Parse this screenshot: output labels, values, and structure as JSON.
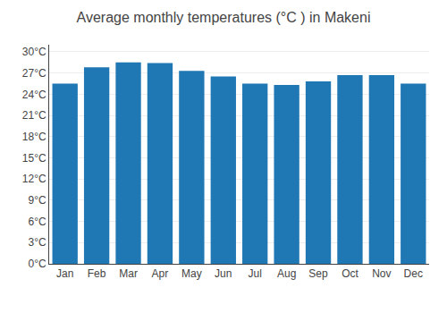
{
  "chart_data": {
    "type": "bar",
    "title": "Average monthly temperatures (°C ) in Makeni",
    "categories": [
      "Jan",
      "Feb",
      "Mar",
      "Apr",
      "May",
      "Jun",
      "Jul",
      "Aug",
      "Sep",
      "Oct",
      "Nov",
      "Dec"
    ],
    "values": [
      25.5,
      27.8,
      28.5,
      28.4,
      27.3,
      26.5,
      25.5,
      25.3,
      25.8,
      26.7,
      26.7,
      25.5
    ],
    "ylim": [
      0,
      31
    ],
    "yticks": [
      {
        "value": 0,
        "label": "0°C"
      },
      {
        "value": 3,
        "label": "3°C"
      },
      {
        "value": 6,
        "label": "6°C"
      },
      {
        "value": 9,
        "label": "9°C"
      },
      {
        "value": 12,
        "label": "12°C"
      },
      {
        "value": 15,
        "label": "15°C"
      },
      {
        "value": 18,
        "label": "18°C"
      },
      {
        "value": 21,
        "label": "21°C"
      },
      {
        "value": 24,
        "label": "24°C"
      },
      {
        "value": 27,
        "label": "27°C"
      },
      {
        "value": 30,
        "label": "30°C"
      }
    ],
    "grid": true
  }
}
